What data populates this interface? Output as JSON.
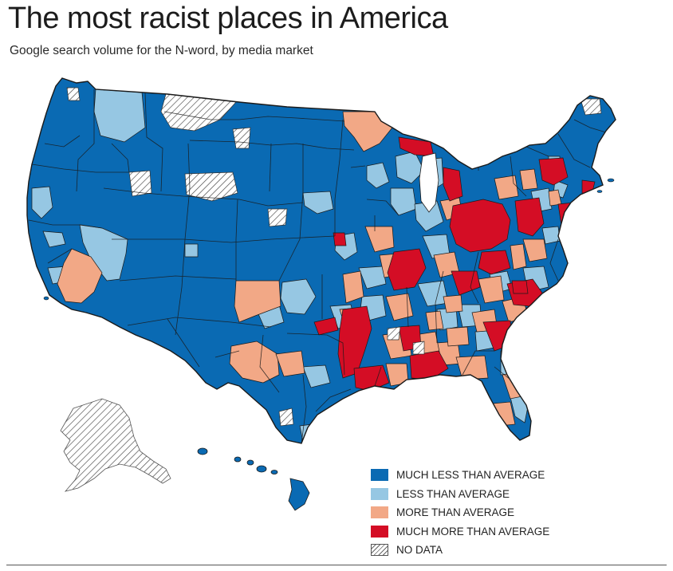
{
  "title": "The most racist places in America",
  "subtitle": "Google search volume for the N-word, by media market",
  "legend": {
    "items": [
      {
        "label": "MUCH LESS THAN AVERAGE",
        "color": "#0a6ab3"
      },
      {
        "label": "LESS THAN AVERAGE",
        "color": "#96c7e3"
      },
      {
        "label": "MORE THAN AVERAGE",
        "color": "#f2a886"
      },
      {
        "label": "MUCH MORE THAN AVERAGE",
        "color": "#d40d25"
      },
      {
        "label": "NO DATA",
        "color": "hatched"
      }
    ]
  },
  "colors": {
    "much_less": "#0a6ab3",
    "less": "#96c7e3",
    "more": "#f2a886",
    "much_more": "#d40d25",
    "border": "#1a1a1a"
  }
}
